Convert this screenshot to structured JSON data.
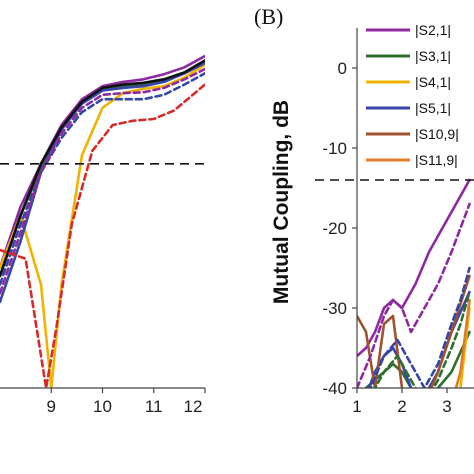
{
  "panel_label": "(B)",
  "chart_data": [
    {
      "type": "line",
      "title": "",
      "xlabel": "",
      "ylabel": "",
      "xlim": [
        8.0,
        12.0
      ],
      "ylim": [
        -40,
        5
      ],
      "x_ticks": [
        "9",
        "10",
        "11",
        "12"
      ],
      "reference_line_y": -14,
      "series": [
        {
          "color": "#8e2aa0",
          "dash": "",
          "x": [
            8.0,
            8.4,
            8.8,
            9.2,
            9.6,
            10.0,
            10.4,
            10.8,
            11.2,
            11.6,
            12.0
          ],
          "y": [
            -26,
            -19,
            -14,
            -9.5,
            -6.5,
            -5.0,
            -4.5,
            -4.2,
            -3.6,
            -2.8,
            -1.5
          ]
        },
        {
          "color": "#2f6f2f",
          "dash": "",
          "x": [
            8.0,
            8.4,
            8.8,
            9.2,
            9.6,
            10.0,
            10.4,
            10.8,
            11.2,
            11.6,
            12.0
          ],
          "y": [
            -27,
            -20,
            -14.5,
            -10,
            -7,
            -5.5,
            -5.0,
            -4.8,
            -4.3,
            -3.5,
            -2.2
          ]
        },
        {
          "color": "#f0b400",
          "dash": "",
          "x": [
            8.0,
            8.4,
            8.8,
            9.0,
            9.2,
            9.6,
            10.0,
            10.4,
            10.8,
            11.2,
            11.6,
            12.0
          ],
          "y": [
            -26,
            -20,
            -28,
            -40,
            -28,
            -13,
            -7.5,
            -5.8,
            -5.3,
            -5.0,
            -4.0,
            -2.5
          ]
        },
        {
          "color": "#3646a6",
          "dash": "",
          "x": [
            8.0,
            8.4,
            8.8,
            9.2,
            9.6,
            10.0,
            10.4,
            10.8,
            11.2,
            11.6,
            12.0
          ],
          "y": [
            -30,
            -23,
            -15,
            -10,
            -7,
            -5.5,
            -5.2,
            -5.0,
            -4.5,
            -3.5,
            -2.3
          ]
        },
        {
          "color": "#111111",
          "dash": "",
          "x": [
            8.0,
            8.4,
            8.8,
            9.2,
            9.6,
            10.0,
            10.4,
            10.8,
            11.2,
            11.6,
            12.0
          ],
          "y": [
            -27,
            -20,
            -14,
            -9.8,
            -6.8,
            -5.2,
            -4.8,
            -4.6,
            -4.2,
            -3.4,
            -2.0
          ]
        },
        {
          "color": "#3646a6",
          "dash": "6,4",
          "x": [
            8.0,
            8.4,
            8.8,
            9.2,
            9.6,
            10.0,
            10.4,
            10.8,
            11.2,
            11.6,
            12.0
          ],
          "y": [
            -28,
            -21,
            -15,
            -11,
            -8,
            -6.5,
            -6.5,
            -6.5,
            -6.0,
            -4.8,
            -3.5
          ]
        },
        {
          "color": "#8e2aa0",
          "dash": "6,4",
          "x": [
            8.0,
            8.4,
            8.8,
            9.2,
            9.6,
            10.0,
            10.4,
            10.8,
            11.2,
            11.6,
            12.0
          ],
          "y": [
            -29,
            -22,
            -15,
            -10.5,
            -7.5,
            -6.0,
            -5.8,
            -5.7,
            -5.2,
            -4.2,
            -3.0
          ]
        },
        {
          "color": "#d62b2b",
          "dash": "6,4",
          "x": [
            8.0,
            8.5,
            8.9,
            9.1,
            9.4,
            9.8,
            10.2,
            10.6,
            11.0,
            11.4,
            11.8,
            12.0
          ],
          "y": [
            -24,
            -25,
            -40,
            -33,
            -21,
            -12.5,
            -9.5,
            -9.0,
            -8.8,
            -7.8,
            -5.8,
            -4.8
          ]
        }
      ]
    },
    {
      "type": "line",
      "title": "",
      "xlabel": "",
      "ylabel": "Mutual Coupling, dB",
      "xlim": [
        1,
        3.6
      ],
      "ylim": [
        -40,
        5
      ],
      "y_ticks": [
        "0",
        "-10",
        "-20",
        "-30",
        "-40"
      ],
      "x_ticks": [
        "1",
        "2",
        "3"
      ],
      "reference_line_y": -14,
      "legend": [
        "|S2,1|",
        "|S3,1|",
        "|S4,1|",
        "|S5,1|",
        "|S10,9|",
        "|S11,9|"
      ],
      "legend_position": "top-right",
      "series": [
        {
          "name": "|S2,1|",
          "color": "#8e2aa0",
          "dash": "",
          "x": [
            1.0,
            1.2,
            1.4,
            1.6,
            1.8,
            2.0,
            2.3,
            2.6,
            2.9,
            3.2,
            3.5
          ],
          "y": [
            -36,
            -35,
            -33,
            -30,
            -29,
            -30,
            -27,
            -23,
            -20,
            -17,
            -14
          ]
        },
        {
          "name": "|S3,1|",
          "color": "#2f6f2f",
          "dash": "",
          "x": [
            1.0,
            1.2,
            1.4,
            1.6,
            1.8,
            2.0,
            2.2,
            2.5,
            2.8,
            3.1,
            3.5
          ],
          "y": [
            -42,
            -40,
            -39,
            -38,
            -37,
            -38,
            -40,
            -42,
            -40,
            -38,
            -33
          ]
        },
        {
          "name": "|S4,1|",
          "color": "#f0b400",
          "dash": "",
          "x": [
            1.0,
            1.3,
            1.6,
            1.9,
            2.2,
            2.6,
            3.0,
            3.3,
            3.5
          ],
          "y": [
            -44,
            -44,
            -44,
            -44,
            -44,
            -44,
            -44,
            -40,
            -30
          ]
        },
        {
          "name": "|S5,1|",
          "color": "#3646a6",
          "dash": "",
          "x": [
            1.0,
            1.2,
            1.4,
            1.6,
            1.8,
            2.0,
            2.2,
            2.5,
            2.8,
            3.1,
            3.5
          ],
          "y": [
            -43,
            -41,
            -38,
            -36,
            -35,
            -37,
            -40,
            -41,
            -38,
            -33,
            -28
          ]
        },
        {
          "name": "|S10,9|",
          "color": "#a0522d",
          "dash": "",
          "x": [
            1.0,
            1.2,
            1.4,
            1.6,
            1.8,
            2.0,
            2.2,
            2.5,
            2.8,
            3.1,
            3.5
          ],
          "y": [
            -31,
            -33,
            -40,
            -32,
            -31,
            -40,
            -44,
            -42,
            -38,
            -33,
            -26
          ]
        },
        {
          "name": "|S11,9|",
          "color": "#e07b2a",
          "dash": "",
          "x": [
            1.0,
            1.3,
            1.6,
            1.9,
            2.2,
            2.6,
            3.0,
            3.3,
            3.5
          ],
          "y": [
            -44,
            -44,
            -44,
            -44,
            -44,
            -44,
            -44,
            -38,
            -29
          ]
        },
        {
          "color": "#8e2aa0",
          "dash": "6,4",
          "x": [
            1.0,
            1.3,
            1.6,
            1.8,
            2.0,
            2.2,
            2.5,
            2.8,
            3.1,
            3.3,
            3.5
          ],
          "y": [
            -40,
            -36,
            -31,
            -29,
            -30,
            -33,
            -30,
            -27,
            -23,
            -20,
            -17
          ]
        },
        {
          "color": "#3646a6",
          "dash": "6,4",
          "x": [
            1.0,
            1.3,
            1.6,
            1.9,
            2.2,
            2.5,
            2.8,
            3.1,
            3.3,
            3.5
          ],
          "y": [
            -44,
            -40,
            -36,
            -34,
            -37,
            -40,
            -37,
            -32,
            -29,
            -25
          ]
        },
        {
          "color": "#2f6f2f",
          "dash": "6,4",
          "x": [
            1.0,
            1.3,
            1.6,
            1.9,
            2.2,
            2.5,
            2.8,
            3.1,
            3.3,
            3.5
          ],
          "y": [
            -45,
            -41,
            -38,
            -36,
            -39,
            -42,
            -39,
            -35,
            -32,
            -28
          ]
        }
      ]
    }
  ]
}
